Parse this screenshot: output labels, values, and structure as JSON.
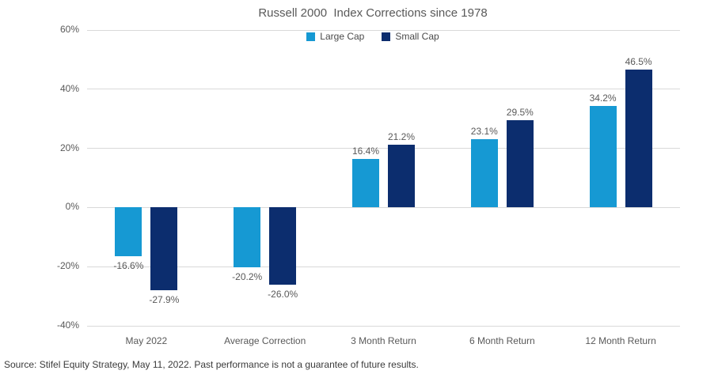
{
  "title": "Russell 2000  Index Corrections since 1978",
  "source": "Source: Stifel Equity Strategy, May 11, 2022. Past performance is not a guarantee of future results.",
  "legend": [
    {
      "label": "Large Cap",
      "color": "#1699d3"
    },
    {
      "label": "Small Cap",
      "color": "#0c2d6e"
    }
  ],
  "colors": {
    "large_cap": "#1699d3",
    "small_cap": "#0c2d6e",
    "gridline": "#d9d9d9",
    "axis_text": "#595959"
  },
  "chart_data": {
    "type": "bar",
    "title": "Russell 2000  Index Corrections since 1978",
    "categories": [
      "May 2022",
      "Average Correction",
      "3 Month Return",
      "6 Month Return",
      "12 Month Return"
    ],
    "series": [
      {
        "name": "Large Cap",
        "color": "#1699d3",
        "values": [
          -16.6,
          -20.2,
          16.4,
          23.1,
          34.2
        ],
        "labels": [
          "-16.6%",
          "-20.2%",
          "16.4%",
          "23.1%",
          "34.2%"
        ]
      },
      {
        "name": "Small Cap",
        "color": "#0c2d6e",
        "values": [
          -27.9,
          -26.0,
          21.2,
          29.5,
          46.5
        ],
        "labels": [
          "-27.9%",
          "-26.0%",
          "21.2%",
          "29.5%",
          "46.5%"
        ]
      }
    ],
    "xlabel": "",
    "ylabel": "",
    "ylim": [
      -40,
      60
    ],
    "ytick_step": 20,
    "yticks": [
      "60%",
      "40%",
      "20%",
      "0%",
      "-20%",
      "-40%"
    ],
    "grid": true,
    "legend_position": "top"
  }
}
